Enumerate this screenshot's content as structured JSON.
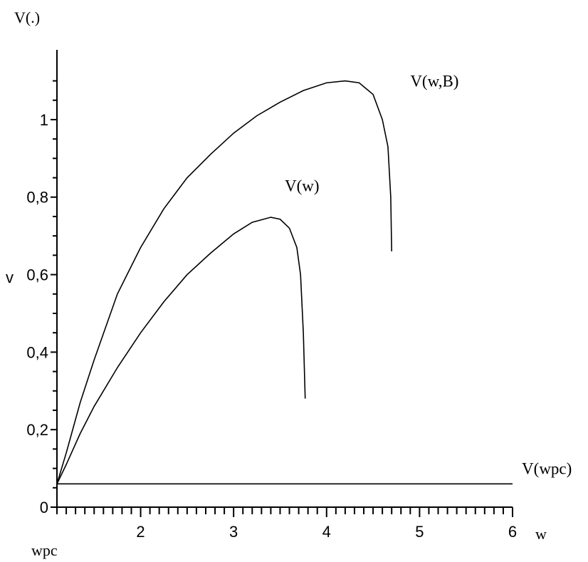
{
  "chart_data": {
    "type": "line",
    "title": "V(.)",
    "xlabel": "w",
    "ylabel": "v",
    "x_origin_label": "wpc",
    "xlim": [
      1.1,
      6
    ],
    "ylim": [
      0,
      1.18
    ],
    "x_ticks": [
      {
        "value": 2,
        "label": "2"
      },
      {
        "value": 3,
        "label": "3"
      },
      {
        "value": 4,
        "label": "4"
      },
      {
        "value": 5,
        "label": "5"
      },
      {
        "value": 6,
        "label": "6"
      }
    ],
    "y_ticks": [
      {
        "value": 0,
        "label": "0"
      },
      {
        "value": 0.2,
        "label": "0,2"
      },
      {
        "value": 0.4,
        "label": "0,4"
      },
      {
        "value": 0.6,
        "label": "0,6"
      },
      {
        "value": 0.8,
        "label": "0,8"
      },
      {
        "value": 1,
        "label": "1"
      }
    ],
    "grid": false,
    "series": [
      {
        "name": "V(w,B)",
        "label_anchor": [
          4.9,
          1.1
        ],
        "points": [
          [
            1.1,
            0.06
          ],
          [
            1.2,
            0.14
          ],
          [
            1.35,
            0.27
          ],
          [
            1.5,
            0.38
          ],
          [
            1.75,
            0.55
          ],
          [
            2.0,
            0.67
          ],
          [
            2.25,
            0.77
          ],
          [
            2.5,
            0.85
          ],
          [
            2.75,
            0.91
          ],
          [
            3.0,
            0.965
          ],
          [
            3.25,
            1.01
          ],
          [
            3.5,
            1.045
          ],
          [
            3.75,
            1.075
          ],
          [
            4.0,
            1.095
          ],
          [
            4.2,
            1.1
          ],
          [
            4.35,
            1.095
          ],
          [
            4.5,
            1.065
          ],
          [
            4.6,
            1.0
          ],
          [
            4.66,
            0.93
          ],
          [
            4.69,
            0.8
          ],
          [
            4.7,
            0.66
          ]
        ]
      },
      {
        "name": "V(w)",
        "label_anchor": [
          3.55,
          0.83
        ],
        "points": [
          [
            1.1,
            0.06
          ],
          [
            1.2,
            0.11
          ],
          [
            1.35,
            0.19
          ],
          [
            1.5,
            0.26
          ],
          [
            1.75,
            0.36
          ],
          [
            2.0,
            0.45
          ],
          [
            2.25,
            0.53
          ],
          [
            2.5,
            0.6
          ],
          [
            2.75,
            0.655
          ],
          [
            3.0,
            0.705
          ],
          [
            3.2,
            0.735
          ],
          [
            3.4,
            0.748
          ],
          [
            3.5,
            0.743
          ],
          [
            3.6,
            0.72
          ],
          [
            3.68,
            0.67
          ],
          [
            3.72,
            0.6
          ],
          [
            3.75,
            0.45
          ],
          [
            3.77,
            0.28
          ]
        ]
      },
      {
        "name": "V(wpc)",
        "label_anchor": [
          6.1,
          0.1
        ],
        "points": [
          [
            1.1,
            0.06
          ],
          [
            6.0,
            0.06
          ]
        ]
      }
    ]
  }
}
